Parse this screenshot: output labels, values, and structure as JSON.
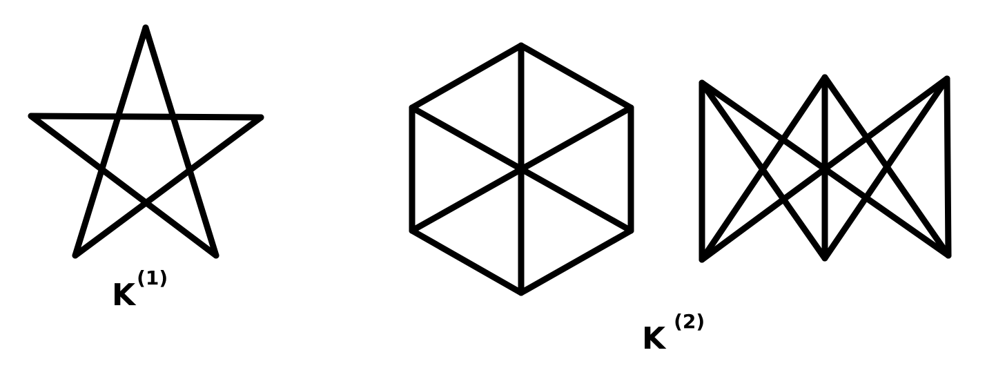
{
  "labels": {
    "k1": {
      "base": "K",
      "sup": "(1)"
    },
    "k2": {
      "base": "K",
      "sup": "(2)"
    }
  },
  "graphs": [
    {
      "id": "pentagram",
      "label": "k1",
      "vertices": [
        "A",
        "B",
        "C",
        "D",
        "E"
      ],
      "edges": [
        [
          "A",
          "D"
        ],
        [
          "D",
          "B"
        ],
        [
          "B",
          "E"
        ],
        [
          "E",
          "C"
        ],
        [
          "C",
          "A"
        ]
      ]
    },
    {
      "id": "hexagon-wheel",
      "label": "k2",
      "vertices": [
        "T",
        "UR",
        "LR",
        "BO",
        "LL",
        "UL"
      ],
      "edges": [
        [
          "T",
          "UR"
        ],
        [
          "UR",
          "LR"
        ],
        [
          "LR",
          "BO"
        ],
        [
          "BO",
          "LL"
        ],
        [
          "LL",
          "UL"
        ],
        [
          "UL",
          "T"
        ],
        [
          "T",
          "BO"
        ],
        [
          "UR",
          "LL"
        ],
        [
          "UL",
          "LR"
        ]
      ]
    },
    {
      "id": "bowtie",
      "label": "k2",
      "vertices": [
        "TL",
        "TM",
        "TR",
        "BL",
        "BM",
        "BR"
      ],
      "edges": [
        [
          "TL",
          "BL"
        ],
        [
          "TR",
          "BR"
        ],
        [
          "TM",
          "BM"
        ],
        [
          "TL",
          "BM"
        ],
        [
          "TL",
          "BR"
        ],
        [
          "TM",
          "BL"
        ],
        [
          "TM",
          "BR"
        ],
        [
          "TR",
          "BL"
        ],
        [
          "TR",
          "BM"
        ]
      ]
    }
  ],
  "colors": {
    "stroke": "#000000",
    "background": "#ffffff"
  }
}
